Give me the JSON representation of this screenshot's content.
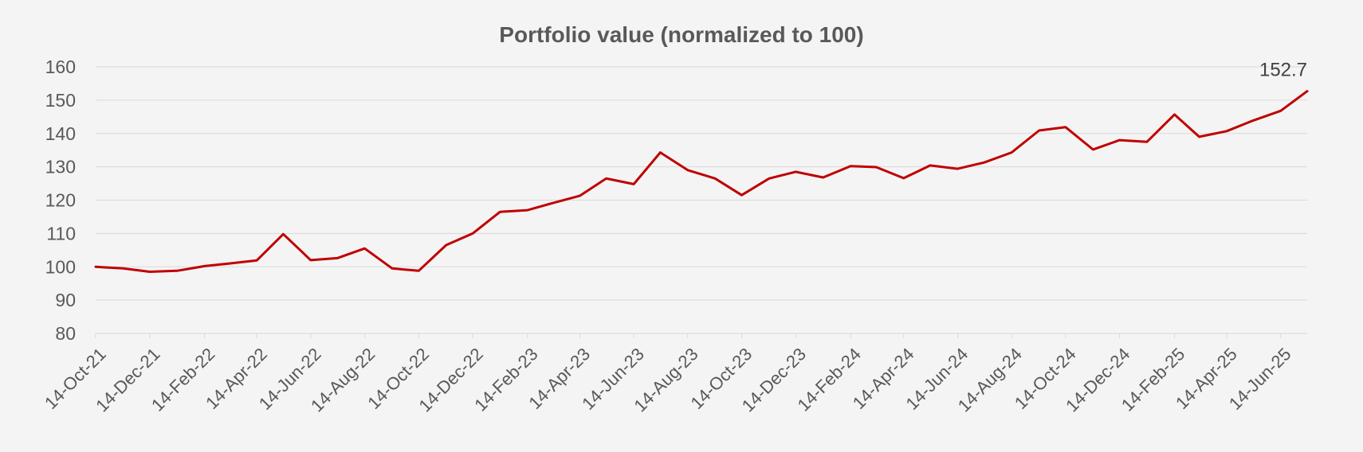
{
  "chart_data": {
    "type": "line",
    "title": "Portfolio value (normalized to 100)",
    "xlabel": "",
    "ylabel": "",
    "ylim": [
      80,
      160
    ],
    "yticks": [
      80,
      90,
      100,
      110,
      120,
      130,
      140,
      150,
      160
    ],
    "grid": true,
    "legend": "none",
    "line_color": "#c00000",
    "xtick_labels": [
      "14-Oct-21",
      "14-Dec-21",
      "14-Feb-22",
      "14-Apr-22",
      "14-Jun-22",
      "14-Aug-22",
      "14-Oct-22",
      "14-Dec-22",
      "14-Feb-23",
      "14-Apr-23",
      "14-Jun-23",
      "14-Aug-23",
      "14-Oct-23",
      "14-Dec-23",
      "14-Feb-24",
      "14-Apr-24",
      "14-Jun-24",
      "14-Aug-24",
      "14-Oct-24",
      "14-Dec-24",
      "14-Feb-25",
      "14-Apr-25",
      "14-Jun-25"
    ],
    "end_label": "152.7",
    "series": [
      {
        "x": [
          "14-Oct-21",
          "14-Nov-21",
          "14-Dec-21",
          "14-Jan-22",
          "14-Feb-22",
          "14-Mar-22",
          "14-Apr-22",
          "14-May-22",
          "14-Jun-22",
          "14-Jul-22",
          "14-Aug-22",
          "14-Sep-22",
          "14-Oct-22",
          "14-Nov-22",
          "14-Dec-22",
          "14-Jan-23",
          "14-Feb-23",
          "14-Mar-23",
          "14-Apr-23",
          "14-May-23",
          "14-Jun-23",
          "14-Jul-23",
          "14-Aug-23",
          "14-Sep-23",
          "14-Oct-23",
          "14-Nov-23",
          "14-Dec-23",
          "14-Jan-24",
          "14-Feb-24",
          "14-Mar-24",
          "14-Apr-24",
          "14-May-24",
          "14-Jun-24",
          "14-Jul-24",
          "14-Aug-24",
          "14-Sep-24",
          "14-Oct-24",
          "14-Nov-24",
          "14-Dec-24",
          "14-Jan-25",
          "14-Feb-25",
          "14-Mar-25",
          "14-Apr-25",
          "14-May-25",
          "14-Jun-25",
          "14-Jul-25"
        ],
        "values": [
          100.0,
          99.5,
          98.5,
          98.8,
          100.2,
          101.0,
          101.9,
          109.8,
          102.0,
          102.6,
          105.5,
          99.5,
          98.8,
          106.5,
          110.0,
          116.5,
          117.0,
          119.1,
          121.3,
          126.5,
          124.8,
          134.3,
          129.0,
          126.5,
          121.5,
          126.5,
          128.5,
          126.8,
          130.2,
          129.9,
          126.6,
          130.4,
          129.4,
          131.3,
          134.3,
          140.9,
          141.9,
          135.2,
          138.0,
          137.5,
          145.7,
          139.0,
          140.7,
          143.9,
          146.8,
          152.7
        ]
      }
    ]
  }
}
